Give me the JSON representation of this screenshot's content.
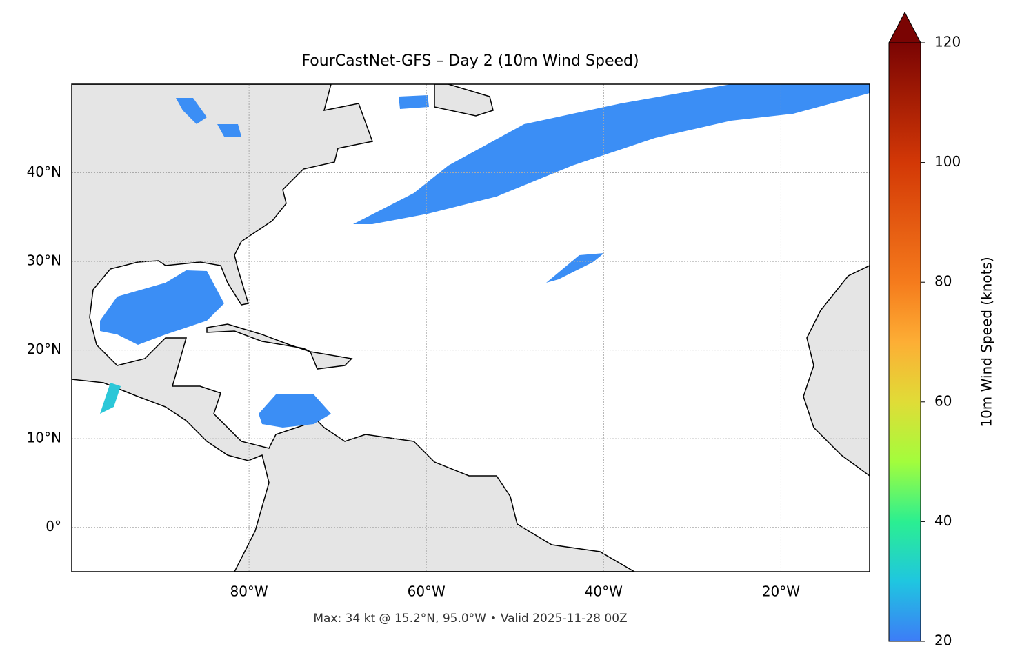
{
  "chart_data": {
    "type": "map",
    "title": "FourCastNet-GFS – Day 2 (10m Wind Speed)",
    "footnote": "Max: 34 kt @ 15.2°N, 95.0°W • Valid 2025-11-28 00Z",
    "xlim": [
      -100,
      -10
    ],
    "ylim": [
      -5,
      50
    ],
    "xticks": [
      {
        "value": -80,
        "label": "80°W"
      },
      {
        "value": -60,
        "label": "60°W"
      },
      {
        "value": -40,
        "label": "40°W"
      },
      {
        "value": -20,
        "label": "20°W"
      }
    ],
    "yticks": [
      {
        "value": 0,
        "label": "0°"
      },
      {
        "value": 10,
        "label": "10°N"
      },
      {
        "value": 20,
        "label": "20°N"
      },
      {
        "value": 30,
        "label": "30°N"
      },
      {
        "value": 40,
        "label": "40°N"
      }
    ],
    "grid": true,
    "colorbar": {
      "label": "10m Wind Speed (knots)",
      "lim": [
        20,
        120
      ],
      "ticks": [
        20,
        40,
        60,
        80,
        100,
        120
      ]
    }
  }
}
